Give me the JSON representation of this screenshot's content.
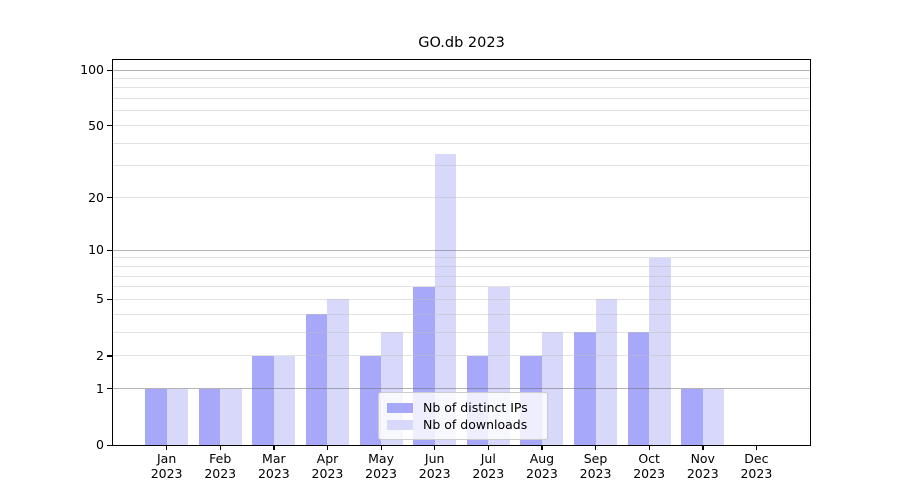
{
  "title": "GO.db 2023",
  "chart_data": {
    "type": "bar",
    "title": "GO.db 2023",
    "categories": [
      "Jan 2023",
      "Feb 2023",
      "Mar 2023",
      "Apr 2023",
      "May 2023",
      "Jun 2023",
      "Jul 2023",
      "Aug 2023",
      "Sep 2023",
      "Oct 2023",
      "Nov 2023",
      "Dec 2023"
    ],
    "series": [
      {
        "name": "Nb of distinct IPs",
        "color": "#a8a8fa",
        "values": [
          1,
          1,
          2,
          4,
          2,
          6,
          2,
          2,
          3,
          3,
          1,
          0
        ]
      },
      {
        "name": "Nb of downloads",
        "color": "#d8d8fa",
        "values": [
          1,
          1,
          2,
          5,
          3,
          35,
          6,
          3,
          5,
          9,
          1,
          0
        ]
      }
    ],
    "xlabel": "",
    "ylabel": "",
    "y_scale": "log1p",
    "ylim": [
      0,
      113
    ],
    "y_major_tick_labels": [
      0,
      1,
      2,
      5,
      10,
      20,
      50,
      100
    ],
    "y_dark_gridlines": [
      1,
      10,
      100
    ],
    "y_light_gridlines": [
      2,
      5,
      20,
      50,
      3,
      4,
      6,
      7,
      8,
      9,
      30,
      40,
      60,
      70,
      80,
      90
    ],
    "grid": "on",
    "legend_position": "lower-center-inside"
  },
  "legend": {
    "items": [
      {
        "label": "Nb of distinct IPs",
        "color": "#a8a8fa"
      },
      {
        "label": "Nb of downloads",
        "color": "#d8d8fa"
      }
    ]
  }
}
